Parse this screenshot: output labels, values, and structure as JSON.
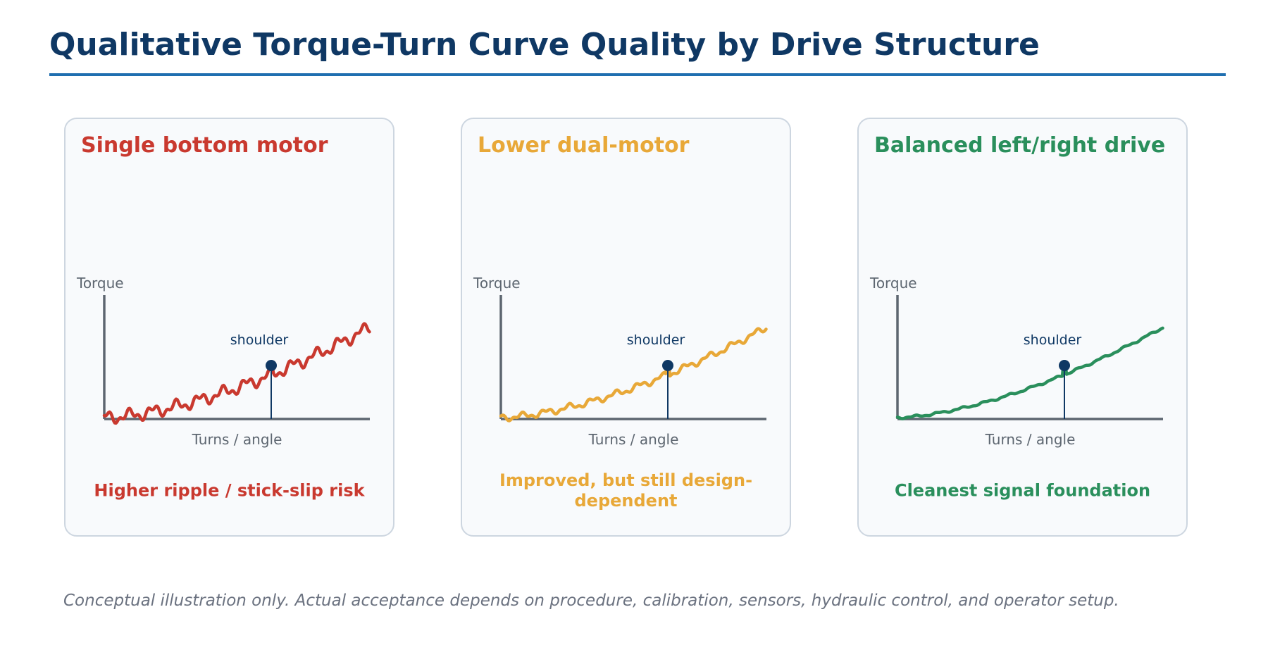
{
  "title": "Qualitative Torque-Turn Curve Quality by Drive Structure",
  "colors": {
    "title": "#0f3864",
    "rule": "#1f6fb0",
    "axis": "#5d6670",
    "shoulder": "#0f3864"
  },
  "panels": [
    {
      "heading": "Single bottom motor",
      "color": "#c9392f",
      "y_label": "Torque",
      "x_label": "Turns / angle",
      "marker_label": "shoulder",
      "caption": "Higher ripple / stick-slip risk",
      "ripple": "high"
    },
    {
      "heading": "Lower dual-motor",
      "color": "#e8a838",
      "y_label": "Torque",
      "x_label": "Turns / angle",
      "marker_label": "shoulder",
      "caption": "Improved, but still design-dependent",
      "ripple": "medium"
    },
    {
      "heading": "Balanced left/right drive",
      "color": "#2a8f5c",
      "y_label": "Torque",
      "x_label": "Turns / angle",
      "marker_label": "shoulder",
      "caption": "Cleanest signal foundation",
      "ripple": "low"
    }
  ],
  "footnote": "Conceptual illustration only. Actual acceptance depends on procedure, calibration, sensors, hydraulic control, and operator setup."
}
